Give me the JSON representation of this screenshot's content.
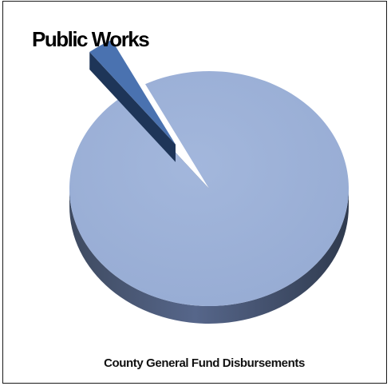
{
  "chart_data": {
    "type": "pie",
    "title": "",
    "categories": [
      "Public Works",
      "County General Fund Disbursements"
    ],
    "values": [
      3,
      97
    ],
    "legend": "none"
  },
  "colors": {
    "public_works_top": "#4a72b0",
    "public_works_side": "#1e3558",
    "general_fund_top": "#9cb1d8",
    "general_fund_side": "#4e5d78"
  }
}
